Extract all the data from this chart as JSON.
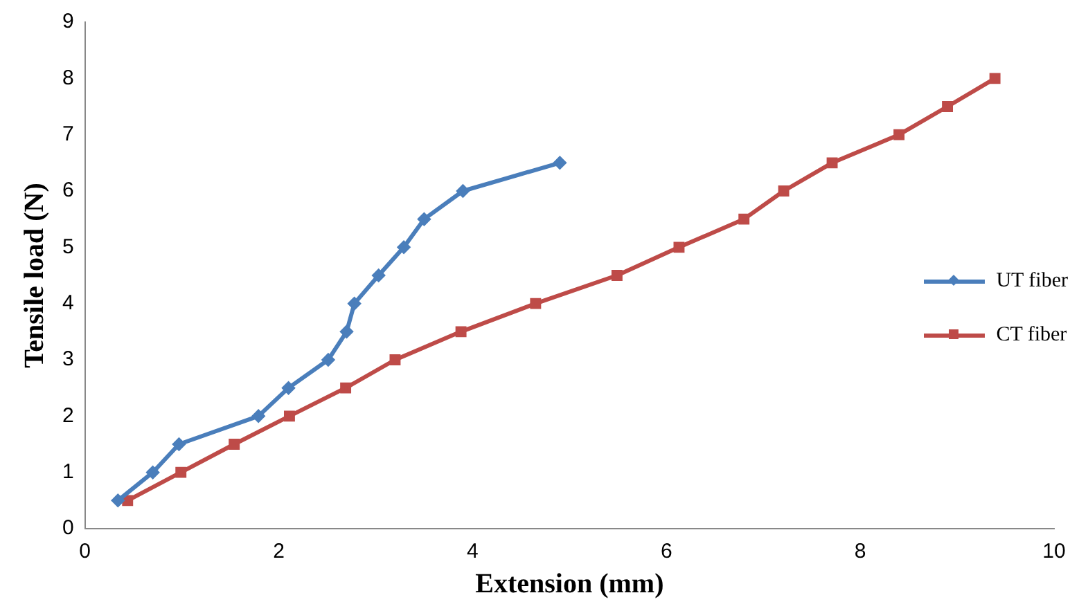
{
  "chart_data": {
    "type": "line",
    "xlabel": "Extension (mm)",
    "ylabel": "Tensile load (N)",
    "xlim": [
      0,
      10
    ],
    "xticks": [
      0,
      2,
      4,
      6,
      8,
      10
    ],
    "ylim": [
      0,
      9
    ],
    "yticks": [
      0,
      1,
      2,
      3,
      4,
      5,
      6,
      7,
      8,
      9
    ],
    "grid": false,
    "legend": "right",
    "line_style": "solid",
    "series": [
      {
        "name": "UT fiber",
        "color": "#4a7ebb",
        "marker": "diamond",
        "x": [
          0.34,
          0.7,
          0.97,
          1.79,
          2.1,
          2.51,
          2.7,
          2.78,
          3.03,
          3.29,
          3.5,
          3.9,
          4.9
        ],
        "values": [
          0.5,
          1,
          1.5,
          2,
          2.5,
          3,
          3.5,
          4,
          4.5,
          5,
          5.5,
          6,
          6.5
        ]
      },
      {
        "name": "CT fiber",
        "color": "#be4b48",
        "marker": "square",
        "x": [
          0.44,
          0.99,
          1.54,
          2.11,
          2.69,
          3.2,
          3.88,
          4.65,
          5.49,
          6.13,
          6.8,
          7.21,
          7.71,
          8.4,
          8.9,
          9.39
        ],
        "values": [
          0.5,
          1,
          1.5,
          2,
          2.5,
          3,
          3.5,
          4,
          4.5,
          5,
          5.5,
          6,
          6.5,
          7,
          7.5,
          8
        ]
      }
    ]
  }
}
